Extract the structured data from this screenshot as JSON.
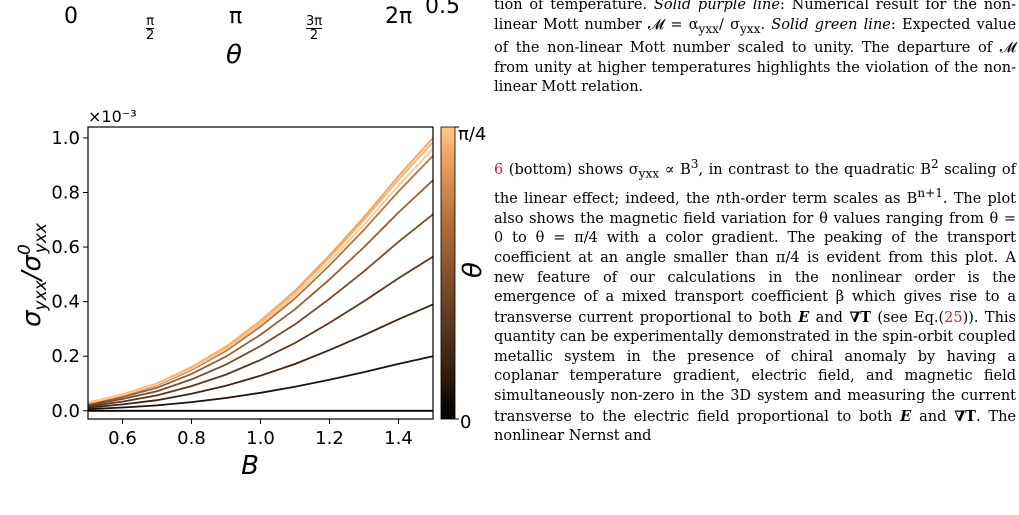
{
  "top_panel": {
    "ticks": [
      "0",
      "π/2",
      "π",
      "3π/2",
      "2π"
    ],
    "xlabel": "θ",
    "right_value": "0.5"
  },
  "caption": {
    "line1": "tion of temperature.",
    "line1_italic": "Solid purple line",
    "line1_rest": ": Numerical result for",
    "line2": "the non-linear Mott number 𝓜 = α",
    "line2_sub1": "yxx",
    "line2_mid": "/ σ",
    "line2_sub2": "yxx",
    "line2_end": ". ",
    "line2_italic": "Solid green",
    "line3_italic": "line",
    "line3": ": Expected value of the non-linear Mott number scaled to unity. The departure of 𝓜 from unity at higher temperatures highlights the violation of the non-linear Mott relation."
  },
  "body": {
    "ref_fig": "6",
    "ref_eq": "25",
    "p_start": " (bottom) shows σ",
    "p_sub": "yxx",
    "p_a": " ∝ B",
    "p_sup1": "3",
    "p_b": ", in contrast to the quadratic B",
    "p_sup2": "2",
    "p_c": " scaling of the linear effect; indeed, the ",
    "p_n": "n",
    "p_d": "th-order term scales as B",
    "p_sup3": "n+1",
    "p_e": ". The plot also shows the magnetic field variation for θ values ranging from θ = 0 to θ = π/4 with a color gradient. The peaking of the transport coefficient at an angle smaller than π/4 is evident from this plot. A new feature of our calculations in the nonlinear order is the emergence of a mixed transport coefficient β which gives rise to a transverse current proportional to both ",
    "p_E": "E",
    "p_and": " and ",
    "p_gradT": "∇T",
    "p_f": " (see Eq.(",
    "p_g": ")). This quantity can be experimentally demonstrated in the spin-orbit coupled metallic system in the presence of chiral anomaly by having a coplanar temperature gradient, electric field, and magnetic field simultaneously non-zero in the 3D system and measuring the current transverse to the electric field proportional to both ",
    "p_E2": "E",
    "p_and2": " and ",
    "p_gradT2": "∇T",
    "p_h": ". The nonlinear Nernst and"
  },
  "chart_data": {
    "type": "line",
    "title": "",
    "xlabel": "B",
    "ylabel": "σyxx/σ0yxx",
    "y_multiplier": "×10⁻³",
    "xlim": [
      0.5,
      1.5
    ],
    "ylim": [
      -0.03,
      1.04
    ],
    "xticks": [
      "0.6",
      "0.8",
      "1.0",
      "1.2",
      "1.4"
    ],
    "yticks": [
      "0.0",
      "0.2",
      "0.4",
      "0.6",
      "0.8",
      "1.0"
    ],
    "x": [
      0.5,
      0.6,
      0.7,
      0.8,
      0.9,
      1.0,
      1.1,
      1.2,
      1.3,
      1.4,
      1.5
    ],
    "curve_scale": [
      0.0,
      0.2,
      0.39,
      0.565,
      0.72,
      0.845,
      0.935,
      0.985,
      1.0,
      0.985,
      0.96
    ],
    "curve_top": [
      0.03,
      0.06,
      0.1,
      0.16,
      0.235,
      0.33,
      0.44,
      0.57,
      0.71,
      0.86,
      1.0
    ],
    "colorbar": {
      "label": "θ",
      "min_label": "0",
      "max_label": "π/4",
      "colors": [
        "#000000",
        "#3d2413",
        "#7a4a28",
        "#b8733f",
        "#f0a462",
        "#ffc88c"
      ]
    }
  }
}
